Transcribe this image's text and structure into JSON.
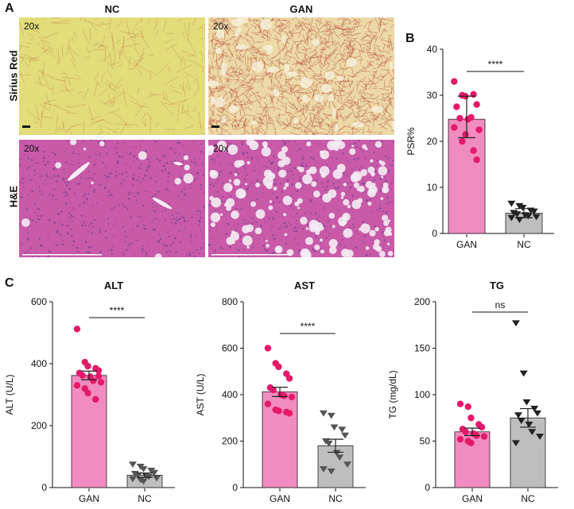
{
  "panels": {
    "A": "A",
    "B": "B",
    "C": "C"
  },
  "histology": {
    "columns": [
      "NC",
      "GAN"
    ],
    "rows": [
      "Sirius Red",
      "H&E"
    ],
    "magnification": "20x",
    "colors": {
      "sirius_bg": "#e2dc7a",
      "sirius_gan_bg": "#ecd9a6",
      "sirius_fiber": "#b5473a",
      "he_bg": "#c85aa8",
      "he_nucleus": "#5a3a8a",
      "he_fat": "#f4ecf4"
    }
  },
  "chart_data": [
    {
      "id": "psr",
      "type": "bar",
      "title": "",
      "xlabel": "",
      "ylabel": "PSR%",
      "ylim": [
        0,
        40
      ],
      "yticks": [
        0,
        10,
        20,
        30,
        40
      ],
      "categories": [
        "GAN",
        "NC"
      ],
      "means": [
        24.8,
        4.4
      ],
      "errors": [
        [
          20.8,
          29.8
        ],
        [
          3.4,
          5.4
        ]
      ],
      "error_type": "sd",
      "bar_colors": [
        "#f08cbf",
        "#bebebe"
      ],
      "point_colors": [
        "#e5196a",
        "#222222"
      ],
      "markers": [
        "circle",
        "triangle-down"
      ],
      "points": [
        [
          33.0,
          30.0,
          29.8,
          30.2,
          28.0,
          27.5,
          25.0,
          24.8,
          25.2,
          22.5,
          23.0,
          20.0,
          21.5,
          18.0,
          16.0
        ],
        [
          6.5,
          6.0,
          5.6,
          5.0,
          4.8,
          4.5,
          4.2,
          4.0,
          3.8,
          3.6,
          3.4,
          3.0
        ]
      ],
      "significance": "****"
    },
    {
      "id": "alt",
      "type": "bar",
      "title": "ALT",
      "xlabel": "",
      "ylabel": "ALT (U/L)",
      "ylim": [
        0,
        600
      ],
      "yticks": [
        0,
        200,
        400,
        600
      ],
      "categories": [
        "GAN",
        "NC"
      ],
      "means": [
        362,
        40
      ],
      "errors": [
        [
          348,
          376
        ],
        [
          33,
          47
        ]
      ],
      "error_type": "sem",
      "bar_colors": [
        "#f08cbf",
        "#bebebe"
      ],
      "point_colors": [
        "#e5196a",
        "#555555"
      ],
      "markers": [
        "circle",
        "triangle-down"
      ],
      "points": [
        [
          512,
          405,
          392,
          385,
          378,
          370,
          362,
          358,
          345,
          340,
          330,
          320,
          305,
          285,
          360
        ],
        [
          75,
          68,
          60,
          55,
          48,
          45,
          40,
          38,
          35,
          30,
          28,
          25,
          20
        ]
      ],
      "significance": "****"
    },
    {
      "id": "ast",
      "type": "bar",
      "title": "AST",
      "xlabel": "",
      "ylabel": "AST (U/L)",
      "ylim": [
        0,
        800
      ],
      "yticks": [
        0,
        200,
        400,
        600,
        800
      ],
      "categories": [
        "GAN",
        "NC"
      ],
      "means": [
        412,
        180
      ],
      "errors": [
        [
          392,
          432
        ],
        [
          152,
          208
        ]
      ],
      "error_type": "sem",
      "bar_colors": [
        "#f08cbf",
        "#bebebe"
      ],
      "point_colors": [
        "#e5196a",
        "#555555"
      ],
      "markers": [
        "circle",
        "triangle-down"
      ],
      "points": [
        [
          600,
          535,
          520,
          490,
          470,
          430,
          420,
          400,
          395,
          390,
          360,
          335,
          330,
          325,
          320
        ],
        [
          320,
          310,
          260,
          250,
          225,
          200,
          190,
          150,
          130,
          100,
          80,
          70
        ]
      ],
      "significance": "****"
    },
    {
      "id": "tg",
      "type": "bar",
      "title": "TG",
      "xlabel": "",
      "ylabel": "TG (mg/dL)",
      "ylim": [
        0,
        200
      ],
      "yticks": [
        0,
        50,
        100,
        150,
        200
      ],
      "categories": [
        "GAN",
        "NC"
      ],
      "means": [
        60,
        75
      ],
      "errors": [
        [
          56,
          64
        ],
        [
          65,
          85
        ]
      ],
      "error_type": "sem",
      "bar_colors": [
        "#f08cbf",
        "#bebebe"
      ],
      "point_colors": [
        "#e5196a",
        "#222222"
      ],
      "markers": [
        "circle",
        "triangle-down"
      ],
      "points": [
        [
          90,
          87,
          75,
          68,
          65,
          63,
          60,
          58,
          56,
          55,
          52,
          50,
          48
        ],
        [
          177,
          123,
          92,
          85,
          80,
          78,
          72,
          68,
          60,
          55,
          48
        ]
      ],
      "significance": "ns"
    }
  ]
}
